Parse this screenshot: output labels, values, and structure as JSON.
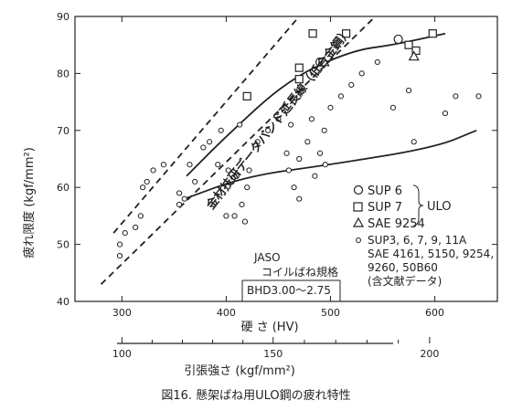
{
  "caption": "図16. 懸架ばね用ULO鋼の疲れ特性",
  "chart_data": {
    "type": "scatter",
    "title": "",
    "xlabel": "硬 さ (HV)",
    "ylabel": "疲れ限度 (kgf/mm²)",
    "xlim": [
      255,
      660
    ],
    "ylim": [
      40,
      90
    ],
    "x_ticks": [
      300,
      400,
      500,
      600
    ],
    "y_ticks": [
      40,
      50,
      60,
      70,
      80,
      90
    ],
    "secondary_axis": {
      "label": "引張強さ (kgf/mm²)",
      "ticks": [
        {
          "label": "100",
          "hv": 300
        },
        {
          "label": "150",
          "hv": 445
        },
        {
          "label": "200",
          "hv": 595
        }
      ]
    },
    "series": [
      {
        "name": "SUP 6",
        "marker": "circle-large",
        "points": [
          [
            490,
            82
          ],
          [
            565,
            86
          ]
        ]
      },
      {
        "name": "SUP 7",
        "marker": "square",
        "points": [
          [
            470,
            81
          ],
          [
            470,
            79
          ],
          [
            515,
            87
          ],
          [
            575,
            85
          ],
          [
            582,
            84
          ],
          [
            598,
            87
          ],
          [
            420,
            76
          ],
          [
            483,
            87
          ]
        ]
      },
      {
        "name": "SAE 9254",
        "marker": "triangle",
        "points": [
          [
            494,
            82
          ],
          [
            580,
            83
          ]
        ]
      },
      {
        "name": "SUP3, 6, 7, 9, 11A  SAE4161, 5150, 9254, 9260, 50B60  (含文献データ)",
        "marker": "circle-small",
        "points": [
          [
            298,
            48
          ],
          [
            298,
            50
          ],
          [
            303,
            52
          ],
          [
            313,
            53
          ],
          [
            318,
            55
          ],
          [
            320,
            60
          ],
          [
            324,
            61
          ],
          [
            330,
            63
          ],
          [
            340,
            64
          ],
          [
            355,
            57
          ],
          [
            355,
            59
          ],
          [
            360,
            58
          ],
          [
            365,
            64
          ],
          [
            370,
            61
          ],
          [
            378,
            67
          ],
          [
            384,
            68
          ],
          [
            392,
            64
          ],
          [
            395,
            70
          ],
          [
            400,
            55
          ],
          [
            402,
            63
          ],
          [
            408,
            55
          ],
          [
            410,
            62
          ],
          [
            413,
            71
          ],
          [
            415,
            57
          ],
          [
            418,
            54
          ],
          [
            420,
            60
          ],
          [
            422,
            63
          ],
          [
            430,
            68
          ],
          [
            440,
            70
          ],
          [
            450,
            72
          ],
          [
            458,
            66
          ],
          [
            462,
            71
          ],
          [
            465,
            60
          ],
          [
            470,
            65
          ],
          [
            478,
            68
          ],
          [
            482,
            72
          ],
          [
            490,
            66
          ],
          [
            494,
            70
          ],
          [
            500,
            74
          ],
          [
            510,
            76
          ],
          [
            520,
            78
          ],
          [
            530,
            80
          ],
          [
            545,
            82
          ],
          [
            560,
            74
          ],
          [
            575,
            77
          ],
          [
            580,
            68
          ],
          [
            610,
            73
          ],
          [
            620,
            76
          ],
          [
            642,
            76
          ],
          [
            485,
            62
          ],
          [
            495,
            64
          ],
          [
            460,
            63
          ],
          [
            470,
            58
          ]
        ]
      }
    ],
    "curves": [
      {
        "style": "solid",
        "points": [
          [
            360,
            58
          ],
          [
            420,
            62
          ],
          [
            500,
            64
          ],
          [
            600,
            67
          ],
          [
            640,
            70
          ]
        ]
      },
      {
        "style": "solid",
        "points": [
          [
            362,
            62
          ],
          [
            400,
            69
          ],
          [
            460,
            79
          ],
          [
            520,
            84
          ],
          [
            560,
            85
          ],
          [
            610,
            87
          ]
        ]
      },
      {
        "style": "dashed",
        "points": [
          [
            292,
            52
          ],
          [
            470,
            90
          ]
        ]
      },
      {
        "style": "dashed",
        "points": [
          [
            280,
            43
          ],
          [
            543,
            90
          ]
        ]
      }
    ],
    "band_label": "金材技研データバンド延長線（低合金鋼）",
    "jaso": {
      "label": "JASO",
      "sublabel": "コイルばね規格",
      "range_text": "BHD3.00〜2.75",
      "hv_range": [
        440,
        540
      ]
    },
    "legend": {
      "placement": "right",
      "group_label": "ULO",
      "entries": [
        "SUP 6",
        "SUP 7",
        "SAE 9254"
      ],
      "extra_lines": [
        "SUP3, 6, 7, 9, 11A",
        "SAE 4161, 5150, 9254,",
        "9260, 50B60",
        "(含文献データ)"
      ]
    },
    "grid": false
  }
}
